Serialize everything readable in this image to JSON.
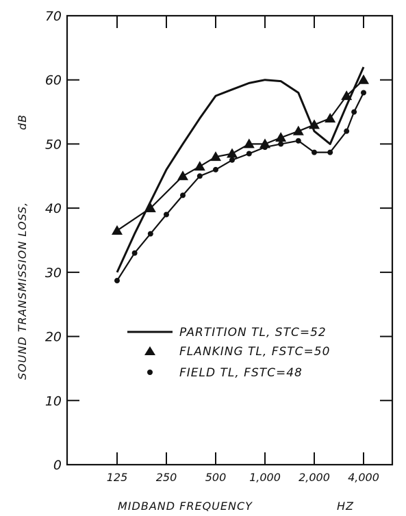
{
  "chart_data": {
    "type": "line",
    "title": "",
    "xlabel": "MIDBAND FREQUENCY",
    "xunit": "HZ",
    "ylabel": "SOUND TRANSMISSION LOSS,",
    "yunit": "dB",
    "x_scale": "log",
    "x_tick_labels": [
      "125",
      "250",
      "500",
      "1,000",
      "2,000",
      "4,000"
    ],
    "x_tick_values": [
      125,
      250,
      500,
      1000,
      2000,
      4000
    ],
    "y_tick_labels": [
      "0",
      "10",
      "20",
      "30",
      "40",
      "50",
      "60",
      "70"
    ],
    "ylim": [
      0,
      70
    ],
    "grid": false,
    "legend_position": "lower-right",
    "series": [
      {
        "name": "PARTITION TL, STC=52",
        "marker": "none",
        "x": [
          125,
          160,
          200,
          250,
          315,
          400,
          500,
          630,
          800,
          1000,
          1250,
          1600,
          2000,
          2500,
          3150,
          4000
        ],
        "y": [
          30,
          36,
          41,
          46,
          50,
          54,
          57.5,
          58.5,
          59.5,
          60,
          59.8,
          58,
          52,
          50,
          56,
          62
        ]
      },
      {
        "name": "FLANKING TL, FSTC=50",
        "marker": "triangle",
        "x": [
          125,
          200,
          315,
          400,
          500,
          630,
          800,
          1000,
          1250,
          1600,
          2000,
          2500,
          3150,
          4000
        ],
        "y": [
          36.5,
          40,
          45,
          46.5,
          48,
          48.5,
          50,
          50,
          51,
          52,
          53,
          54,
          57.5,
          60
        ]
      },
      {
        "name": "FIELD TL, FSTC=48",
        "marker": "circle",
        "x": [
          125,
          160,
          200,
          250,
          315,
          400,
          500,
          630,
          800,
          1000,
          1250,
          1600,
          2000,
          2500,
          3150,
          3500,
          4000
        ],
        "y": [
          28.7,
          33,
          36,
          39,
          42,
          45,
          46,
          47.5,
          48.5,
          49.5,
          50,
          50.5,
          48.7,
          48.7,
          52,
          55,
          58
        ]
      }
    ]
  }
}
